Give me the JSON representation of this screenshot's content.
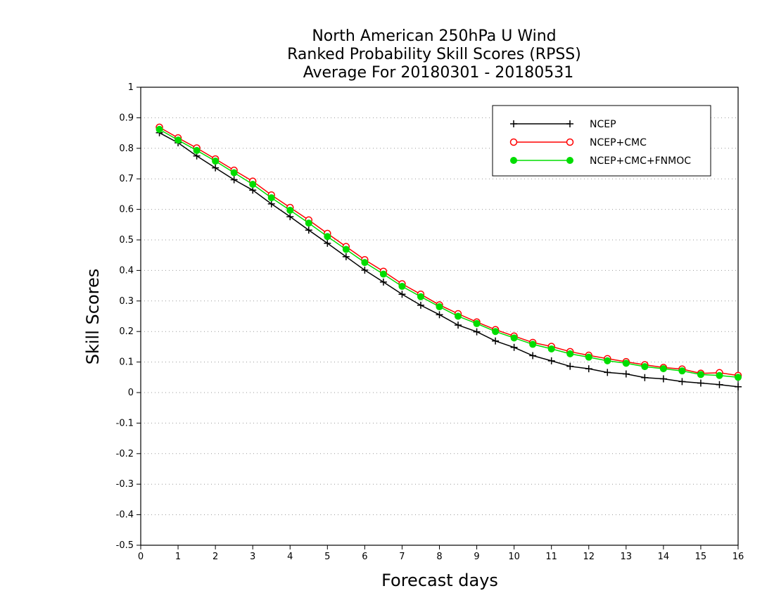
{
  "chart_data": {
    "type": "line",
    "title_lines": [
      "North American 250hPa U Wind",
      "Ranked Probability Skill Scores (RPSS)",
      "Average For 20180301 - 20180531"
    ],
    "xlabel": "Forecast days",
    "ylabel": "Skill Scores",
    "xlim": [
      0,
      16
    ],
    "ylim": [
      -0.5,
      1
    ],
    "xticks": [
      "0",
      "1",
      "2",
      "3",
      "4",
      "5",
      "6",
      "7",
      "8",
      "9",
      "10",
      "11",
      "12",
      "13",
      "14",
      "15",
      "16"
    ],
    "yticks": [
      "1",
      "0.9",
      "0.8",
      "0.7",
      "0.6",
      "0.5",
      "0.4",
      "0.3",
      "0.2",
      "0.1",
      "0",
      "-0.1",
      "-0.2",
      "-0.3",
      "-0.4",
      "-0.5"
    ],
    "grid": "horizontal dotted",
    "legend_position": "top-right",
    "x": [
      0.5,
      1,
      1.5,
      2,
      2.5,
      3,
      3.5,
      4,
      4.5,
      5,
      5.5,
      6,
      6.5,
      7,
      7.5,
      8,
      8.5,
      9,
      9.5,
      10,
      10.5,
      11,
      11.5,
      12,
      12.5,
      13,
      13.5,
      14,
      14.5,
      15,
      15.5,
      16
    ],
    "series": [
      {
        "name": "NCEP",
        "color": "#000000",
        "marker": "plus",
        "values": [
          0.851,
          0.818,
          0.775,
          0.736,
          0.697,
          0.663,
          0.618,
          0.576,
          0.532,
          0.489,
          0.445,
          0.401,
          0.362,
          0.322,
          0.286,
          0.255,
          0.221,
          0.199,
          0.169,
          0.148,
          0.121,
          0.104,
          0.086,
          0.078,
          0.066,
          0.061,
          0.049,
          0.045,
          0.036,
          0.031,
          0.026,
          0.019
        ]
      },
      {
        "name": "NCEP+CMC",
        "color": "#ff0000",
        "marker": "open-circle",
        "values": [
          0.869,
          0.834,
          0.801,
          0.765,
          0.728,
          0.692,
          0.647,
          0.606,
          0.565,
          0.521,
          0.478,
          0.435,
          0.397,
          0.356,
          0.322,
          0.287,
          0.258,
          0.231,
          0.206,
          0.185,
          0.164,
          0.151,
          0.134,
          0.122,
          0.111,
          0.101,
          0.091,
          0.082,
          0.077,
          0.063,
          0.065,
          0.056
        ]
      },
      {
        "name": "NCEP+CMC+FNMOC",
        "color": "#00dd00",
        "marker": "filled-circle",
        "values": [
          0.862,
          0.827,
          0.793,
          0.758,
          0.72,
          0.682,
          0.638,
          0.597,
          0.555,
          0.511,
          0.469,
          0.426,
          0.388,
          0.348,
          0.314,
          0.281,
          0.25,
          0.226,
          0.2,
          0.179,
          0.158,
          0.143,
          0.127,
          0.116,
          0.104,
          0.096,
          0.085,
          0.078,
          0.071,
          0.059,
          0.056,
          0.05
        ]
      }
    ]
  }
}
